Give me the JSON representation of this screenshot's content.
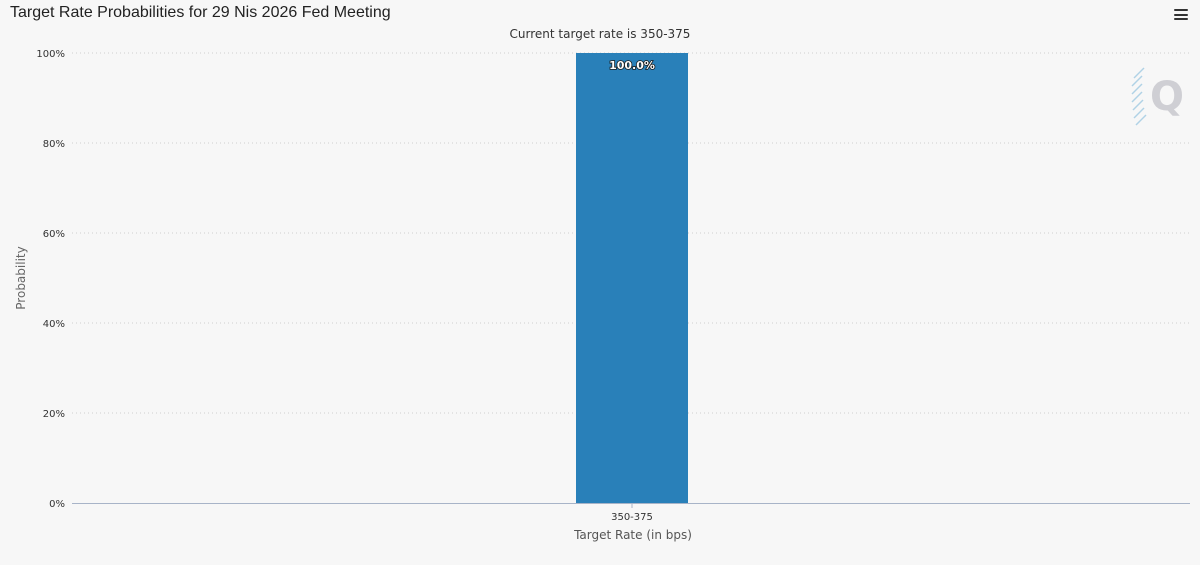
{
  "window": {
    "title": "Target Rate Probabilities for 29 Nis 2026 Fed Meeting"
  },
  "menu": {
    "icon": "hamburger-menu-icon"
  },
  "watermark": {
    "icon": "q-logo-icon",
    "letter": "Q"
  },
  "colors": {
    "bar": "#2980b9",
    "grid": "#cfcfcf",
    "background": "#f7f7f7"
  },
  "chart_data": {
    "type": "bar",
    "title": "Target Rate Probabilities for 29 Nis 2026 Fed Meeting",
    "subtitle": "Current target rate is 350-375",
    "categories": [
      "350-375"
    ],
    "values": [
      100.0
    ],
    "data_labels": [
      "100.0%"
    ],
    "xlabel": "Target Rate (in bps)",
    "ylabel": "Probability",
    "ylim": [
      0,
      100
    ],
    "yticks": [
      0,
      20,
      40,
      60,
      80,
      100
    ],
    "ytick_labels": [
      "0%",
      "20%",
      "40%",
      "60%",
      "80%",
      "100%"
    ],
    "grid": true,
    "legend": "none"
  }
}
